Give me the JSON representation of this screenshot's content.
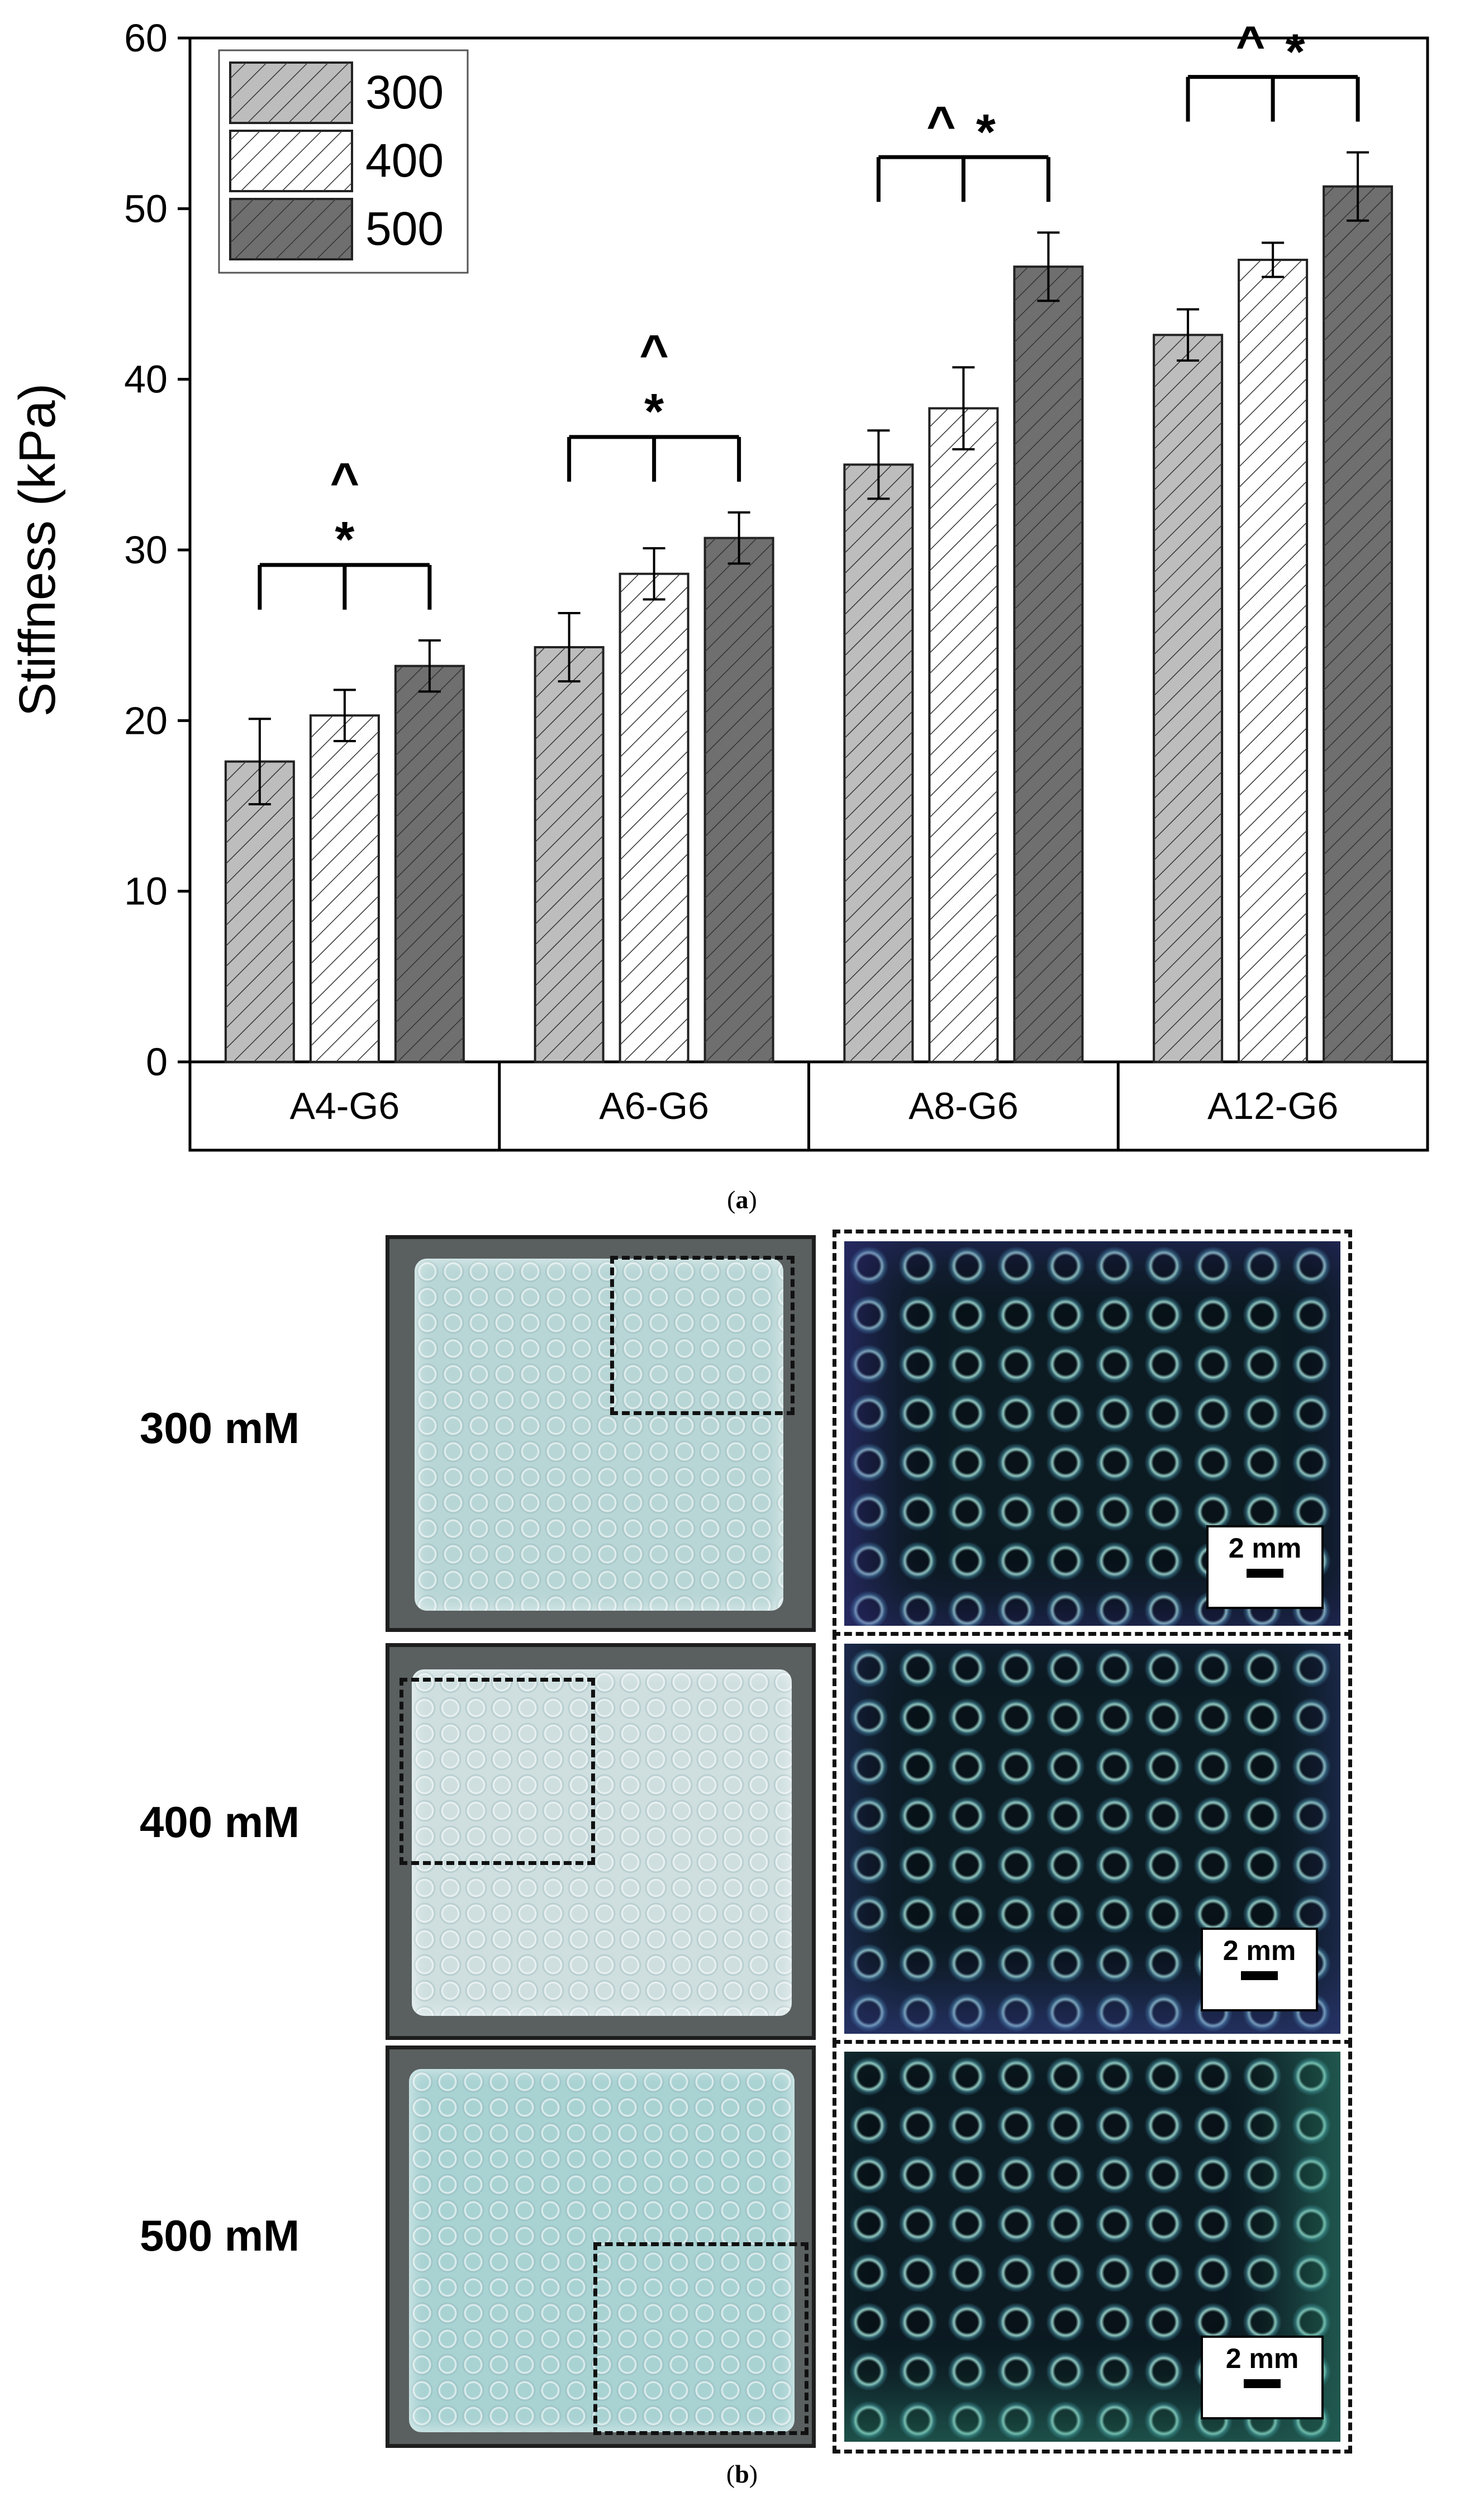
{
  "chart_data": {
    "type": "bar",
    "ylabel": "Stiffness (kPa)",
    "xlabel": "",
    "ylim": [
      0,
      60
    ],
    "yticks": [
      0,
      10,
      20,
      30,
      40,
      50,
      60
    ],
    "categories": [
      "A4-G6",
      "A6-G6",
      "A8-G6",
      "A12-G6"
    ],
    "series": [
      {
        "name": "300",
        "values": [
          17.6,
          24.3,
          35.0,
          42.6
        ],
        "errors": [
          2.5,
          2.0,
          2.0,
          1.5
        ],
        "color": "#bdbdbd"
      },
      {
        "name": "400",
        "values": [
          20.3,
          28.6,
          38.3,
          47.0
        ],
        "errors": [
          1.5,
          1.5,
          2.4,
          1.0
        ],
        "color": "#ffffff"
      },
      {
        "name": "500",
        "values": [
          23.2,
          30.7,
          46.6,
          51.3
        ],
        "errors": [
          1.5,
          1.5,
          2.0,
          2.0
        ],
        "color": "#6f6f6f"
      }
    ],
    "grid": false,
    "legend": "top-left",
    "annotations": [
      {
        "category": "A4-G6",
        "marks": [
          "^",
          "*"
        ],
        "layout": "stacked"
      },
      {
        "category": "A6-G6",
        "marks": [
          "^",
          "*"
        ],
        "layout": "stacked"
      },
      {
        "category": "A8-G6",
        "marks": [
          "^",
          "*"
        ],
        "layout": "inline"
      },
      {
        "category": "A12-G6",
        "marks": [
          "^",
          "*"
        ],
        "layout": "inline"
      }
    ]
  },
  "captions": {
    "a_open": "(",
    "a_letter": "a",
    "a_close": ")",
    "b_open": "(",
    "b_letter": "b",
    "b_close": ")"
  },
  "photos": {
    "rows": [
      {
        "label": "300 mM",
        "scale": "2 mm"
      },
      {
        "label": "400 mM",
        "scale": "2 mm"
      },
      {
        "label": "500 mM",
        "scale": "2 mm"
      }
    ]
  }
}
